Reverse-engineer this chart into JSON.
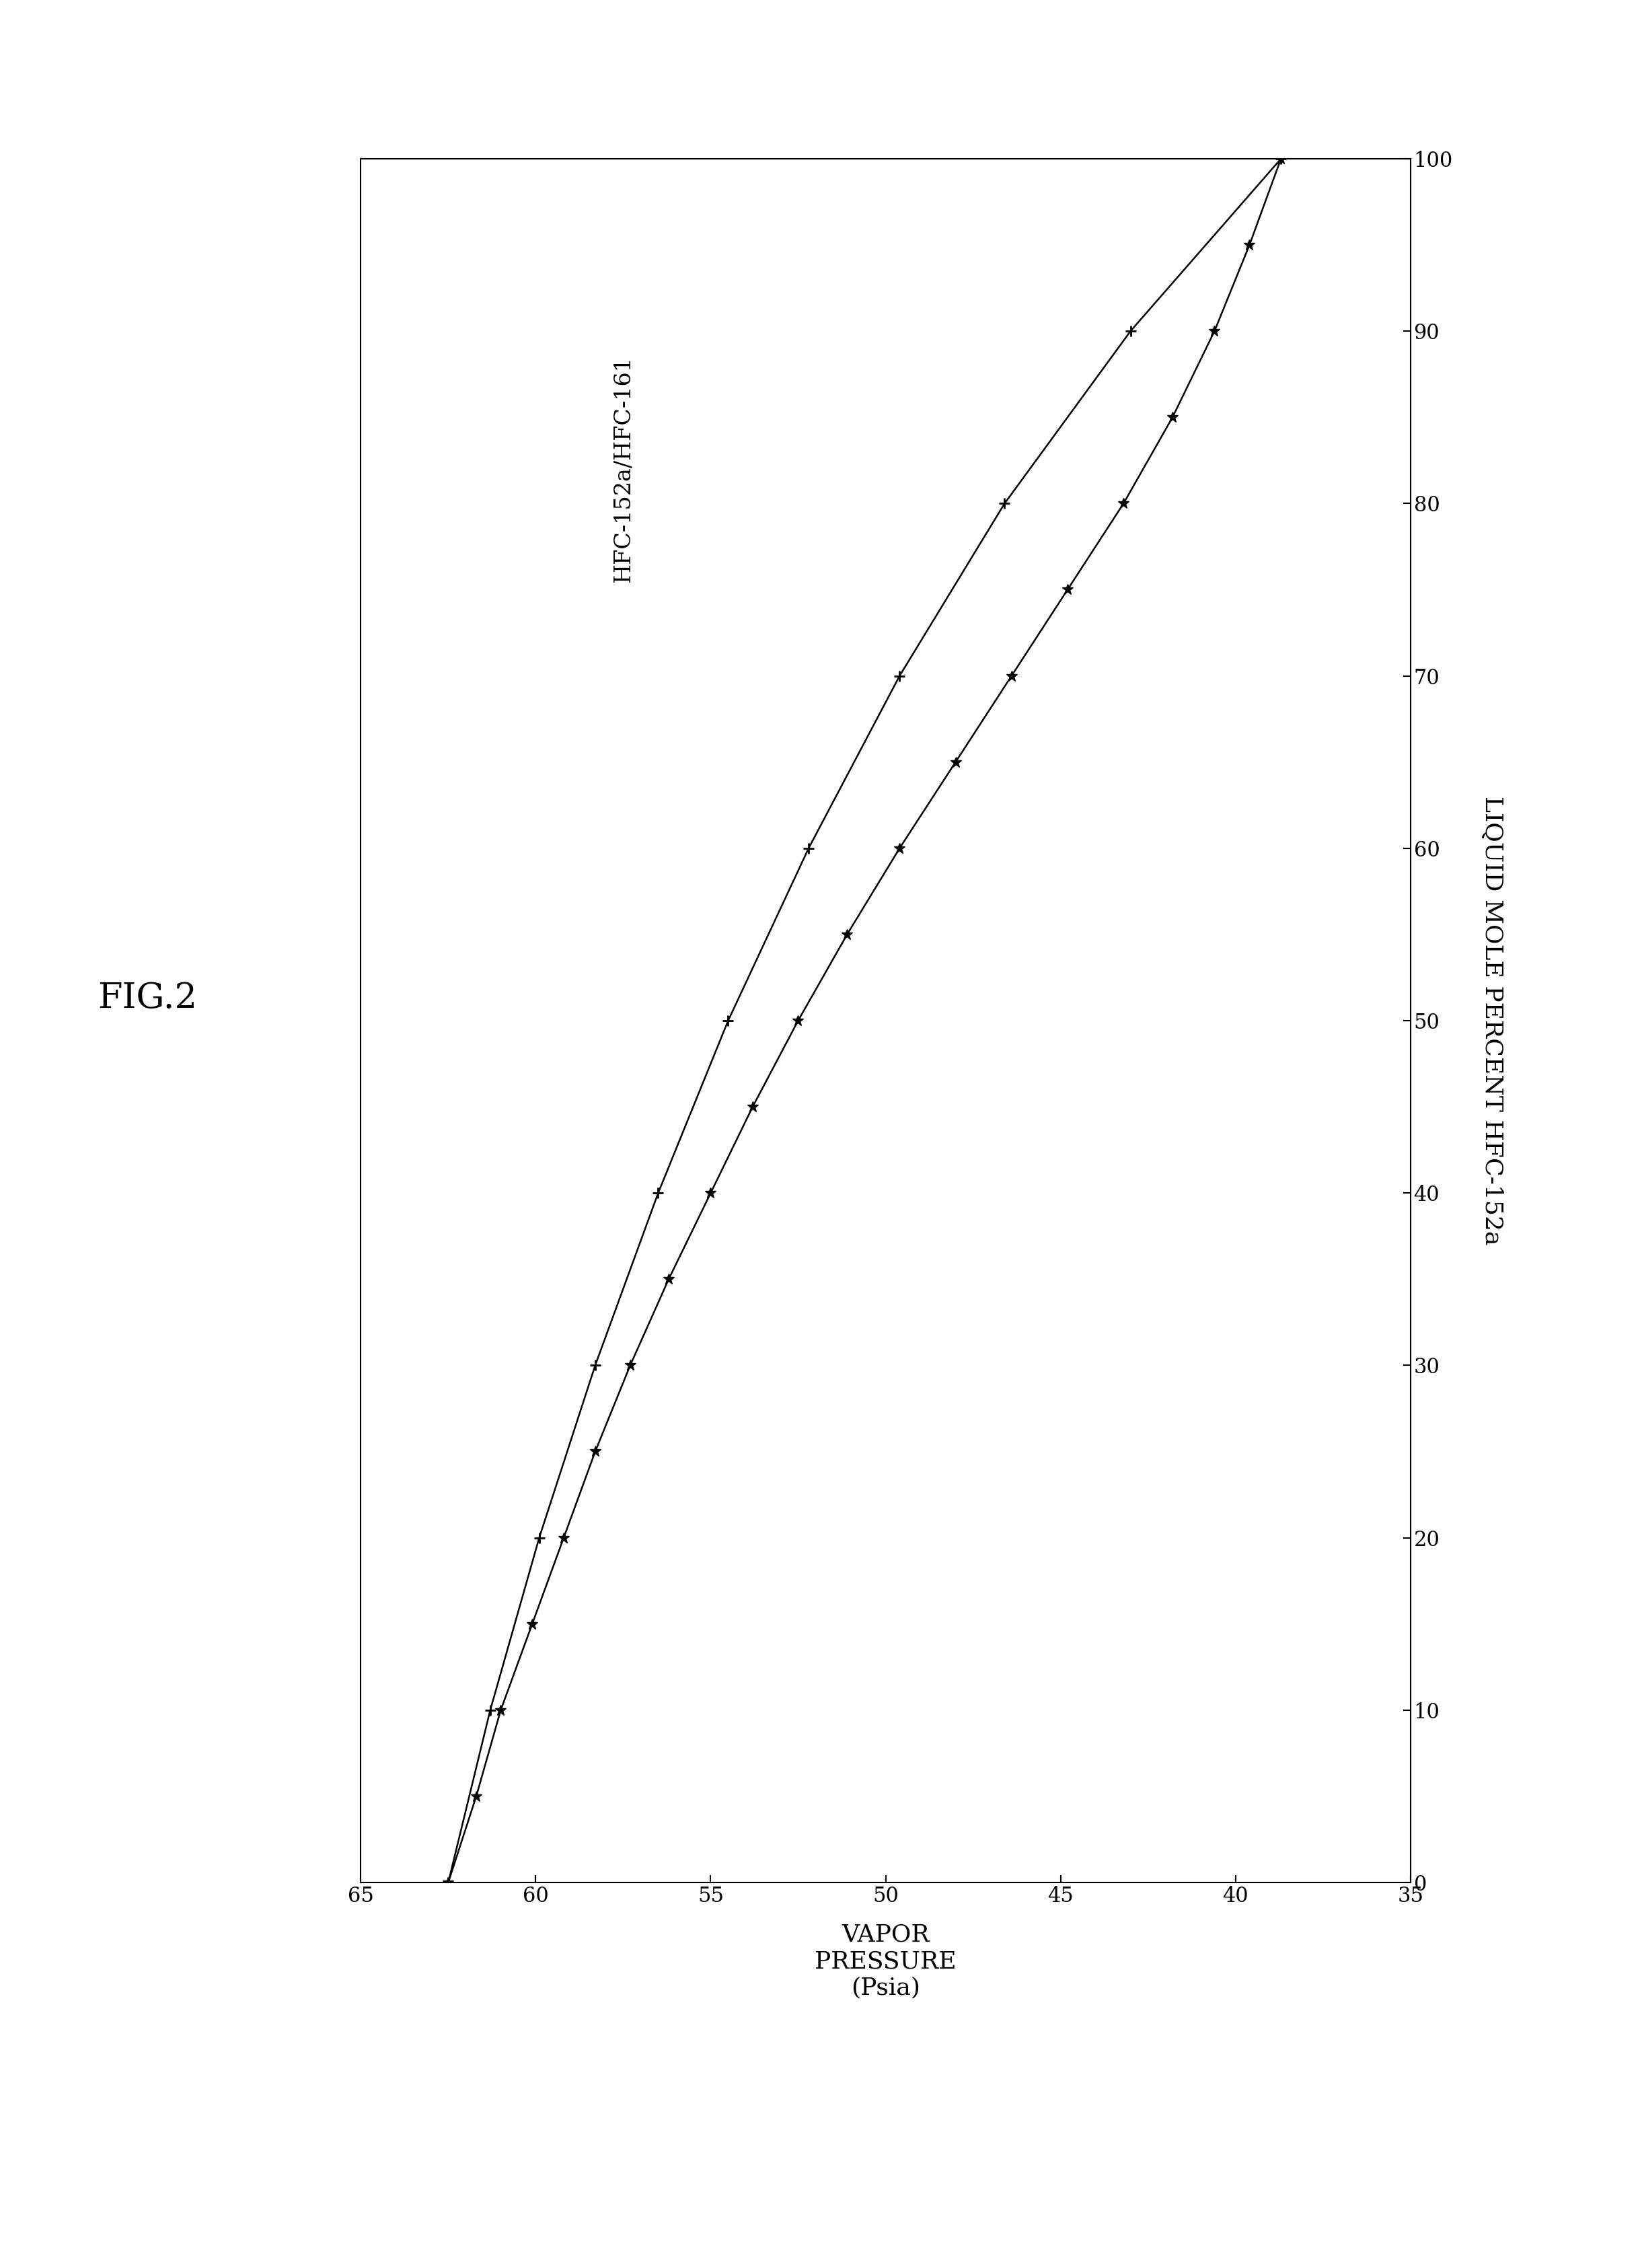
{
  "title_fig": "FIG.2",
  "annotation": "HFC-152a/HFC-161",
  "xlabel": "LIQUID MOLE PERCENT HFC-152a",
  "ylabel": "VAPOR\nPRESSURE\n(Psia)",
  "xlim_vp": [
    65,
    35
  ],
  "ylim_mp": [
    0,
    100
  ],
  "xticks_vp": [
    65,
    60,
    55,
    50,
    45,
    40,
    35
  ],
  "yticks_mp": [
    0,
    10,
    20,
    30,
    40,
    50,
    60,
    70,
    80,
    90,
    100
  ],
  "background_color": "#ffffff",
  "star_mp": [
    0,
    5,
    10,
    15,
    20,
    25,
    30,
    35,
    40,
    45,
    50,
    55,
    60,
    65,
    70,
    75,
    80,
    85,
    90,
    95,
    100
  ],
  "star_vp": [
    62.5,
    61.7,
    61.0,
    60.1,
    59.2,
    58.3,
    57.3,
    56.2,
    55.0,
    53.8,
    52.5,
    51.1,
    49.6,
    48.0,
    46.4,
    44.8,
    43.2,
    41.8,
    40.6,
    39.6,
    38.7
  ],
  "plus_mp": [
    0,
    10,
    20,
    30,
    40,
    50,
    60,
    70,
    80,
    90,
    100
  ],
  "plus_vp": [
    62.5,
    61.3,
    59.9,
    58.3,
    56.5,
    54.5,
    52.2,
    49.6,
    46.6,
    43.0,
    38.7
  ],
  "line_color": "#000000",
  "marker_color": "#000000",
  "star_markersize": 12,
  "plus_markersize": 12,
  "plus_markeredgewidth": 2.0,
  "linewidth": 1.8,
  "font_size_labels": 26,
  "font_size_ticks": 22,
  "font_size_annotation": 24,
  "font_size_fig_title": 38
}
